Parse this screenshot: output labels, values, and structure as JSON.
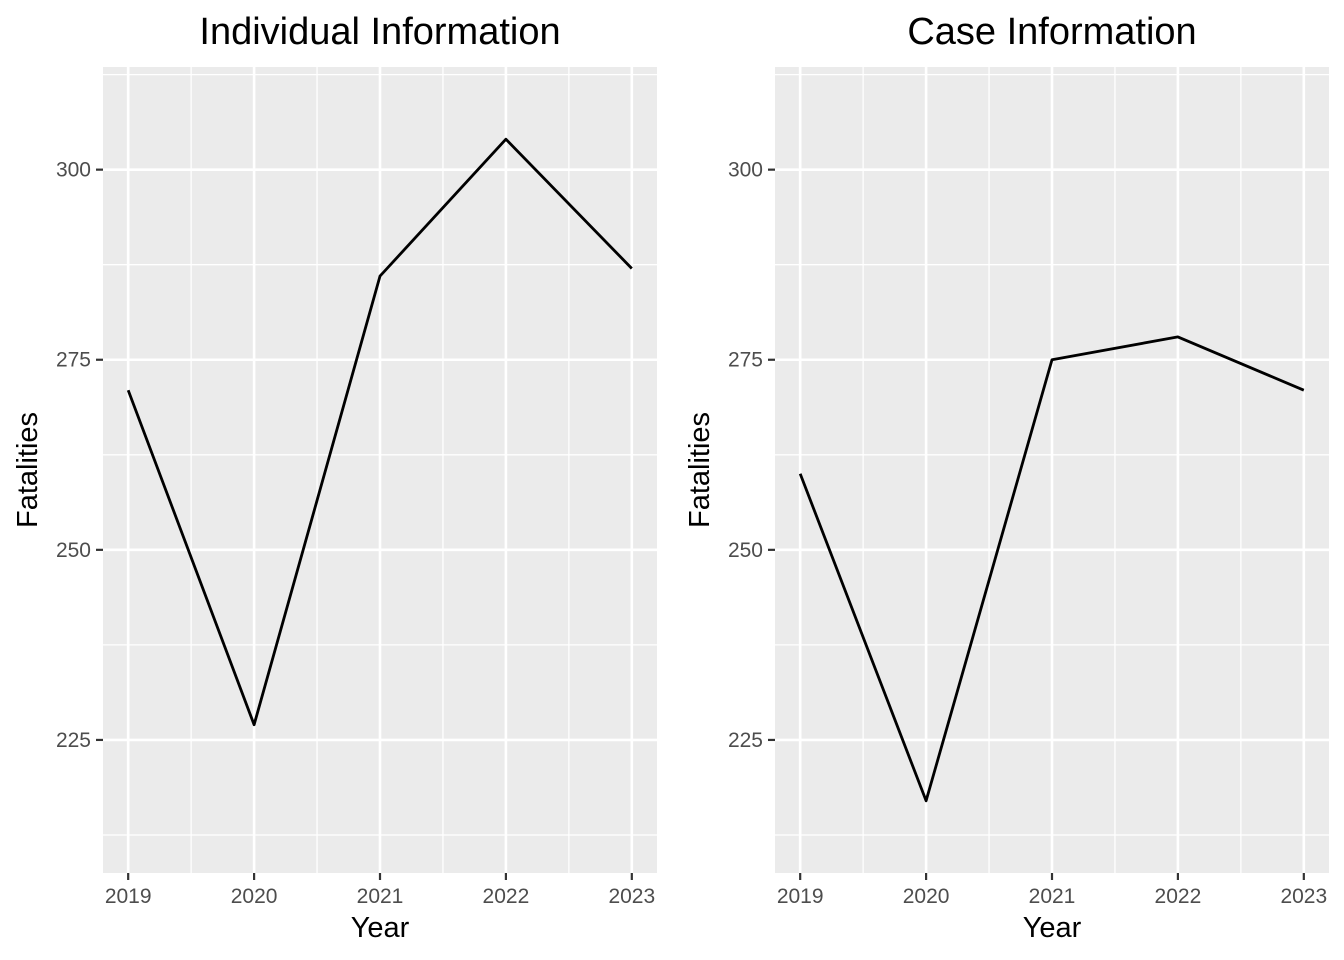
{
  "chart_data": [
    {
      "type": "line",
      "title": "Individual Information",
      "xlabel": "Year",
      "ylabel": "Fatalities",
      "x": [
        2019,
        2020,
        2021,
        2022,
        2023
      ],
      "values": [
        271,
        227,
        286,
        304,
        287
      ],
      "xlim": [
        2018.8,
        2023.2
      ],
      "ylim": [
        207.5,
        313.5
      ],
      "xticks": [
        "2019",
        "2020",
        "2021",
        "2022",
        "2023"
      ],
      "yticks": [
        "225",
        "250",
        "275",
        "300"
      ],
      "ytick_values": [
        225,
        250,
        275,
        300
      ],
      "grid": true,
      "line_color": "#000000",
      "panel_color": "#ebebeb"
    },
    {
      "type": "line",
      "title": "Case Information",
      "xlabel": "Year",
      "ylabel": "Fatalities",
      "x": [
        2019,
        2020,
        2021,
        2022,
        2023
      ],
      "values": [
        260,
        217,
        275,
        278,
        271
      ],
      "xlim": [
        2018.8,
        2023.2
      ],
      "ylim": [
        207.5,
        313.5
      ],
      "xticks": [
        "2019",
        "2020",
        "2021",
        "2022",
        "2023"
      ],
      "yticks": [
        "225",
        "250",
        "275",
        "300"
      ],
      "ytick_values": [
        225,
        250,
        275,
        300
      ],
      "grid": true,
      "line_color": "#000000",
      "panel_color": "#ebebeb"
    }
  ]
}
